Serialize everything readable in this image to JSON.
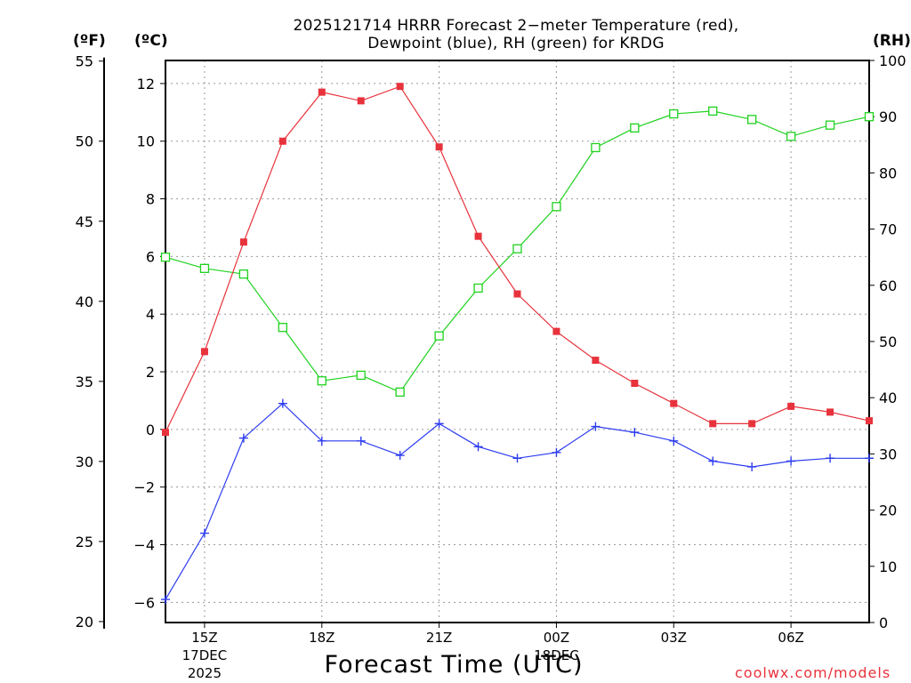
{
  "title_line1": "2025121714 HRRR Forecast 2−meter Temperature (red),",
  "title_line2": "Dewpoint (blue), RH (green) for KRDG",
  "units": {
    "fahrenheit": "(ºF)",
    "celsius": "(ºC)",
    "rh": "(RH)"
  },
  "x_axis_title": "Forecast Time (UTC)",
  "credit": "coolwx.com/models",
  "colors": {
    "temperature": "#e8323c",
    "dewpoint": "#2d3cf0",
    "rh": "#1ed21e",
    "grid": "#9a9a9a",
    "axis": "#000000"
  },
  "chart_data": {
    "type": "line",
    "hours": [
      14,
      15,
      16,
      17,
      18,
      19,
      20,
      21,
      22,
      23,
      24,
      25,
      26,
      27,
      28,
      29,
      30,
      31,
      32
    ],
    "x_ticks": [
      {
        "hour": 15,
        "label": "15Z",
        "sublabel": [
          "17DEC",
          "2025"
        ]
      },
      {
        "hour": 18,
        "label": "18Z",
        "sublabel": []
      },
      {
        "hour": 21,
        "label": "21Z",
        "sublabel": []
      },
      {
        "hour": 24,
        "label": "00Z",
        "sublabel": [
          "18DEC"
        ]
      },
      {
        "hour": 27,
        "label": "03Z",
        "sublabel": []
      },
      {
        "hour": 30,
        "label": "06Z",
        "sublabel": []
      }
    ],
    "xlim": [
      14,
      32
    ],
    "celsius_axis": {
      "ylim": [
        -6.7,
        12.8
      ],
      "ticks": [
        -6,
        -4,
        -2,
        0,
        2,
        4,
        6,
        8,
        10,
        12
      ],
      "tick_labels": [
        "−6",
        "−4",
        "−2",
        "0",
        "2",
        "4",
        "6",
        "8",
        "10",
        "12"
      ]
    },
    "fahrenheit_axis": {
      "ticks": [
        20,
        25,
        30,
        35,
        40,
        45,
        50,
        55
      ],
      "tick_labels": [
        "20",
        "25",
        "30",
        "35",
        "40",
        "45",
        "50",
        "55"
      ]
    },
    "rh_axis": {
      "ylim": [
        0,
        100
      ],
      "ticks": [
        0,
        10,
        20,
        30,
        40,
        50,
        60,
        70,
        80,
        90,
        100
      ],
      "tick_labels": [
        "0",
        "10",
        "20",
        "30",
        "40",
        "50",
        "60",
        "70",
        "80",
        "90",
        "100"
      ]
    },
    "series": [
      {
        "name": "Temperature",
        "units": "C",
        "marker": "filled-square",
        "values": [
          -0.1,
          2.7,
          6.5,
          10.0,
          11.7,
          11.4,
          11.9,
          9.8,
          6.7,
          4.7,
          3.4,
          2.4,
          1.6,
          0.9,
          0.2,
          0.2,
          0.8,
          0.6,
          0.3
        ]
      },
      {
        "name": "Dewpoint",
        "units": "C",
        "marker": "plus",
        "values": [
          -5.9,
          -3.6,
          -0.3,
          0.9,
          -0.4,
          -0.4,
          -0.9,
          0.2,
          -0.6,
          -1.0,
          -0.8,
          0.1,
          -0.1,
          -0.4,
          -1.1,
          -1.3,
          -1.1,
          -1.0,
          -1.0
        ]
      },
      {
        "name": "RH",
        "units": "%",
        "marker": "open-square",
        "values": [
          65,
          63,
          62,
          52.5,
          43,
          44,
          41,
          51,
          59.5,
          66.5,
          74,
          84.5,
          88,
          90.5,
          91,
          89.5,
          86.5,
          88.5,
          90
        ]
      }
    ]
  }
}
